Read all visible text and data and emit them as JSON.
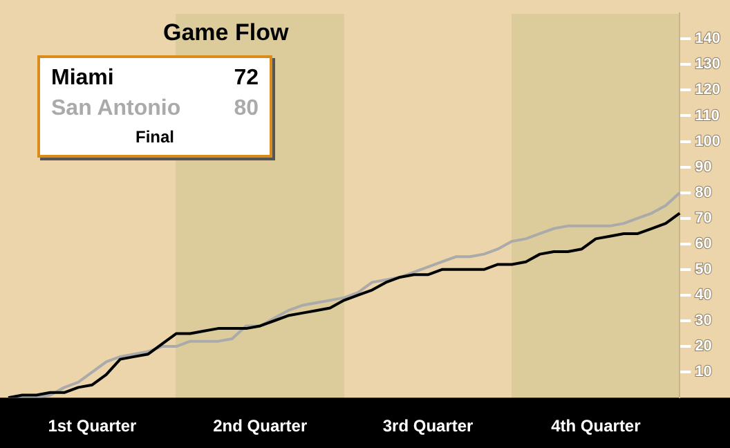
{
  "chart_data": {
    "type": "line",
    "title": "Game Flow",
    "categories": [
      null,
      null,
      null,
      null,
      null,
      null,
      "1st Quarter",
      null,
      null,
      null,
      null,
      null,
      null,
      null,
      null,
      null,
      null,
      null,
      "2nd Quarter",
      null,
      null,
      null,
      null,
      null,
      null,
      null,
      null,
      null,
      null,
      null,
      "3rd Quarter",
      null,
      null,
      null,
      null,
      null,
      null,
      null,
      null,
      null,
      null,
      null,
      "4th Quarter",
      null,
      null,
      null,
      null,
      null,
      null
    ],
    "ylim": [
      0,
      150
    ],
    "yticks": [
      10,
      20,
      30,
      40,
      50,
      60,
      70,
      80,
      90,
      100,
      110,
      120,
      130,
      140
    ],
    "marker": "none",
    "line_style": "solid",
    "annotations": [
      "72",
      "80",
      "Final"
    ],
    "series": [
      {
        "name": "Miami",
        "color": "#000000",
        "values": [
          0,
          1,
          1,
          2,
          2,
          4,
          5,
          9,
          15,
          16,
          17,
          21,
          25,
          25,
          26,
          27,
          27,
          27,
          28,
          30,
          32,
          33,
          34,
          35,
          38,
          40,
          42,
          45,
          47,
          48,
          48,
          50,
          50,
          50,
          50,
          52,
          52,
          53,
          56,
          57,
          57,
          58,
          62,
          63,
          64,
          64,
          66,
          68,
          72
        ]
      },
      {
        "name": "San Antonio",
        "color": "#aaaaaa",
        "values": [
          0,
          0,
          0,
          1,
          4,
          6,
          10,
          14,
          16,
          17,
          18,
          20,
          20,
          22,
          22,
          22,
          23,
          28,
          28,
          31,
          34,
          36,
          37,
          38,
          39,
          41,
          45,
          46,
          47,
          49,
          51,
          53,
          55,
          55,
          56,
          58,
          61,
          62,
          64,
          66,
          67,
          67,
          67,
          67,
          68,
          70,
          72,
          75,
          80
        ]
      }
    ]
  }
}
